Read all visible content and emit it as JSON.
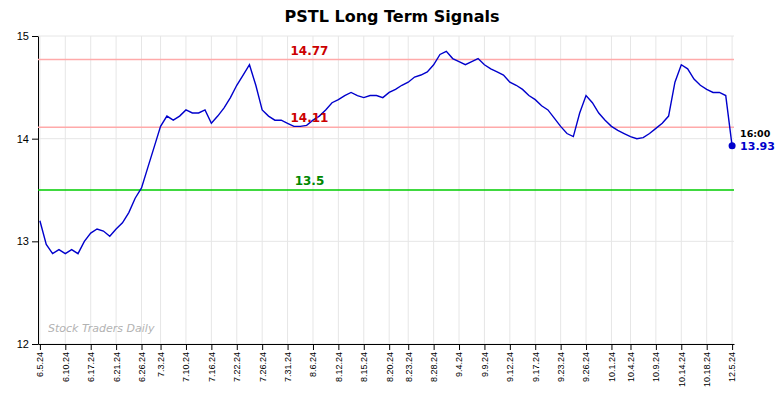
{
  "chart_data": {
    "type": "line",
    "title": "PSTL Long Term Signals",
    "categories": [
      "6.5.24",
      null,
      null,
      null,
      "6.10.24",
      null,
      null,
      null,
      "6.17.24",
      null,
      null,
      null,
      "6.21.24",
      null,
      null,
      null,
      "6.26.24",
      null,
      null,
      "7.3.24",
      null,
      null,
      null,
      "7.10.24",
      null,
      null,
      null,
      "7.16.24",
      null,
      null,
      null,
      "7.22.24",
      null,
      null,
      null,
      "7.26.24",
      null,
      null,
      null,
      "7.31.24",
      null,
      null,
      null,
      "8.6.24",
      null,
      null,
      null,
      "8.12.24",
      null,
      null,
      null,
      "8.15.24",
      null,
      null,
      null,
      "8.20.24",
      null,
      null,
      "8.23.24",
      null,
      null,
      null,
      "8.28.24",
      null,
      null,
      null,
      "9.4.24",
      null,
      null,
      null,
      "9.9.24",
      null,
      null,
      null,
      "9.12.24",
      null,
      null,
      null,
      "9.17.24",
      null,
      null,
      null,
      "9.23.24",
      null,
      null,
      null,
      "9.26.24",
      null,
      null,
      null,
      "10.1.24",
      null,
      null,
      "10.4.24",
      null,
      null,
      null,
      "10.9.24",
      null,
      null,
      null,
      "10.14.24",
      null,
      null,
      null,
      "10.18.24",
      null,
      null,
      null,
      "12.5.24"
    ],
    "values": [
      13.2,
      12.97,
      12.88,
      12.92,
      12.88,
      12.92,
      12.88,
      13.0,
      13.08,
      13.12,
      13.1,
      13.05,
      13.12,
      13.18,
      13.28,
      13.42,
      13.52,
      13.72,
      13.92,
      14.12,
      14.22,
      14.18,
      14.22,
      14.28,
      14.25,
      14.25,
      14.28,
      14.15,
      14.22,
      14.3,
      14.4,
      14.52,
      14.62,
      14.72,
      14.52,
      14.28,
      14.22,
      14.18,
      14.18,
      14.15,
      14.12,
      14.12,
      14.13,
      14.18,
      14.22,
      14.28,
      14.35,
      14.38,
      14.42,
      14.45,
      14.42,
      14.4,
      14.42,
      14.42,
      14.4,
      14.45,
      14.48,
      14.52,
      14.55,
      14.6,
      14.62,
      14.65,
      14.72,
      14.82,
      14.85,
      14.78,
      14.75,
      14.72,
      14.75,
      14.78,
      14.72,
      14.68,
      14.65,
      14.62,
      14.55,
      14.52,
      14.48,
      14.42,
      14.38,
      14.32,
      14.28,
      14.2,
      14.12,
      14.05,
      14.02,
      14.25,
      14.42,
      14.35,
      14.25,
      14.18,
      14.12,
      14.08,
      14.05,
      14.02,
      14.0,
      14.01,
      14.05,
      14.1,
      14.15,
      14.22,
      14.55,
      14.72,
      14.68,
      14.58,
      14.52,
      14.48,
      14.45,
      14.45,
      14.42,
      13.93
    ],
    "color": "#0000cc",
    "ylim": [
      12,
      15
    ],
    "yticks": [
      12,
      13,
      14,
      15
    ],
    "grid": true,
    "reference_lines": [
      {
        "value": 14.77,
        "color": "#ffaaaa",
        "label": "14.77",
        "label_color": "#cc0000"
      },
      {
        "value": 14.11,
        "color": "#ffaaaa",
        "label": "14.11",
        "label_color": "#cc0000"
      },
      {
        "value": 13.5,
        "color": "#00cc00",
        "label": "13.5",
        "label_color": "#008800"
      }
    ],
    "annotations": [
      {
        "text": "16:00"
      },
      {
        "text": "13.93",
        "value": 13.93,
        "color": "#0000cc"
      }
    ],
    "watermark": "Stock Traders Daily"
  }
}
